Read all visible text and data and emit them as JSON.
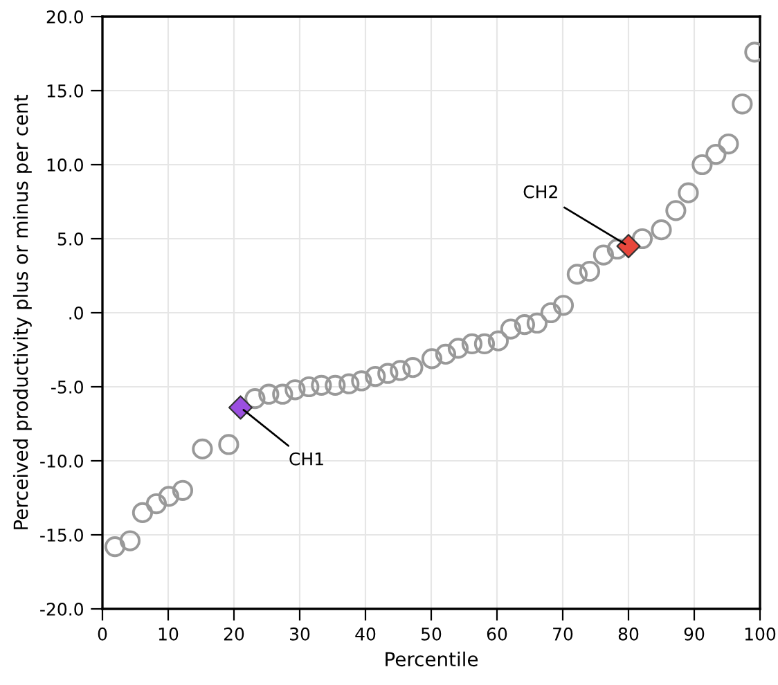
{
  "chart_data": {
    "type": "scatter",
    "xlabel": "Percentile",
    "ylabel": "Perceived productivity plus or minus per cent",
    "xlim": [
      0,
      100
    ],
    "xticks": [
      0,
      10,
      20,
      30,
      40,
      50,
      60,
      70,
      80,
      90,
      100
    ],
    "ylim": [
      -20,
      20
    ],
    "yticks": [
      {
        "value": -20,
        "label": "-20.0"
      },
      {
        "value": -15,
        "label": "-15.0"
      },
      {
        "value": -10,
        "label": "-10.0"
      },
      {
        "value": -5,
        "label": "-5.0"
      },
      {
        "value": 0,
        "label": ".0"
      },
      {
        "value": 5,
        "label": "5.0"
      },
      {
        "value": 10,
        "label": "10.0"
      },
      {
        "value": 15,
        "label": "15.0"
      },
      {
        "value": 20,
        "label": "20.0"
      }
    ],
    "grid": true,
    "series": [
      {
        "color": "#999999",
        "marker": "circle",
        "x": [
          1.9,
          4.2,
          6.1,
          8.2,
          10.1,
          12.2,
          15.2,
          19.2,
          23.2,
          25.3,
          27.4,
          29.3,
          31.4,
          33.3,
          35.4,
          37.5,
          39.4,
          41.5,
          43.4,
          45.3,
          47.2,
          50.1,
          52.2,
          54.1,
          56.2,
          58.1,
          60.2,
          62.1,
          64.2,
          66.1,
          68.2,
          70.1,
          72.2,
          74.1,
          76.2,
          78.3,
          82.1,
          85.0,
          87.2,
          89.1,
          91.2,
          93.3,
          95.2,
          97.3,
          99.2
        ],
        "values": [
          -15.8,
          -15.4,
          -13.5,
          -12.9,
          -12.4,
          -12.0,
          -9.2,
          -8.9,
          -5.8,
          -5.5,
          -5.5,
          -5.2,
          -5.0,
          -4.9,
          -4.9,
          -4.8,
          -4.6,
          -4.3,
          -4.1,
          -3.9,
          -3.7,
          -3.1,
          -2.8,
          -2.4,
          -2.1,
          -2.1,
          -1.9,
          -1.1,
          -0.8,
          -0.7,
          0.0,
          0.5,
          2.6,
          2.8,
          3.9,
          4.3,
          5.0,
          5.6,
          6.9,
          8.1,
          10.0,
          10.7,
          11.4,
          14.1,
          17.6
        ]
      },
      {
        "color": "#9b4fe0",
        "marker": "diamond",
        "x": [
          21.0
        ],
        "values": [
          -6.4
        ]
      },
      {
        "color": "#e8473c",
        "marker": "diamond",
        "x": [
          80.0
        ],
        "values": [
          4.5
        ]
      }
    ],
    "annotations": [
      {
        "text": "CH1",
        "x": 21.0,
        "y": -6.4
      },
      {
        "text": "CH2",
        "x": 80.0,
        "y": 4.5
      }
    ]
  }
}
